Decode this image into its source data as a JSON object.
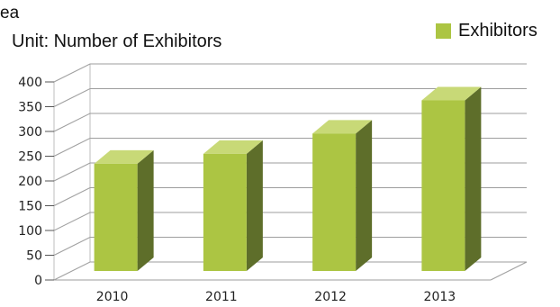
{
  "header": {
    "fragment": "ea",
    "unit": "Unit: Number of Exhibitors"
  },
  "legend": {
    "label": "Exhibitors",
    "color": "#acc543"
  },
  "chart_data": {
    "type": "bar",
    "categories": [
      "2010",
      "2011",
      "2012",
      "2013"
    ],
    "series": [
      {
        "name": "Exhibitors",
        "values": [
          262,
          282,
          323,
          390
        ]
      }
    ],
    "ylim": [
      0,
      400
    ],
    "yticks": [
      0,
      50,
      100,
      150,
      200,
      250,
      300,
      350,
      400
    ],
    "grid": true,
    "style": "3d-column",
    "legend_position": "top-right",
    "colors": {
      "front": "#acc543",
      "side": "#5e6e2a",
      "top": "#c8d977",
      "grid": "#9e9e9e"
    }
  }
}
